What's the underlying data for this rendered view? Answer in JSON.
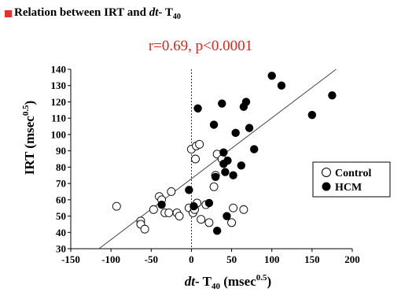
{
  "header": {
    "bullet_color": "#e8312a",
    "prefix": "Relation between IRT and ",
    "italic": "dt",
    "suffix": "- T",
    "sub": "40"
  },
  "chart_data": {
    "type": "scatter",
    "title": "Relation between IRT and dt- T40",
    "subtitle": "r=0.69, p<0.0001",
    "xlabel": "dt- T40 (msec0.5)",
    "ylabel": "IRT (msec0.5)",
    "xlim": [
      -150,
      200
    ],
    "ylim": [
      30,
      140
    ],
    "x_ticks": [
      -150,
      -100,
      -50,
      0,
      50,
      100,
      150,
      200
    ],
    "y_ticks": [
      30,
      40,
      50,
      60,
      70,
      80,
      90,
      100,
      110,
      120,
      130,
      140
    ],
    "grid": false,
    "legend": "right",
    "vertical_reference_line_x": 0,
    "regression_line": {
      "x1": -115,
      "y1": 30,
      "x2": 180,
      "y2": 140
    },
    "series": [
      {
        "name": "Control",
        "marker": "open-circle",
        "color": "#000000",
        "points": [
          [
            -93,
            56
          ],
          [
            -63,
            47
          ],
          [
            -63,
            45
          ],
          [
            -58,
            42
          ],
          [
            -47,
            54
          ],
          [
            -40,
            62
          ],
          [
            -37,
            60
          ],
          [
            -33,
            52
          ],
          [
            -28,
            52
          ],
          [
            -25,
            65
          ],
          [
            -18,
            52
          ],
          [
            -15,
            50
          ],
          [
            -3,
            55
          ],
          [
            0,
            91
          ],
          [
            2,
            52
          ],
          [
            4,
            54
          ],
          [
            5,
            85
          ],
          [
            6,
            93
          ],
          [
            7,
            58
          ],
          [
            10,
            94
          ],
          [
            12,
            48
          ],
          [
            18,
            57
          ],
          [
            22,
            46
          ],
          [
            28,
            68
          ],
          [
            30,
            75
          ],
          [
            32,
            88
          ],
          [
            38,
            85
          ],
          [
            50,
            46
          ],
          [
            52,
            55
          ],
          [
            65,
            54
          ]
        ]
      },
      {
        "name": "HCM",
        "marker": "filled-circle",
        "color": "#000000",
        "points": [
          [
            -37,
            57
          ],
          [
            -3,
            66
          ],
          [
            3,
            56
          ],
          [
            8,
            116
          ],
          [
            22,
            58
          ],
          [
            28,
            106
          ],
          [
            30,
            74
          ],
          [
            32,
            41
          ],
          [
            38,
            119
          ],
          [
            40,
            89
          ],
          [
            40,
            82
          ],
          [
            42,
            77
          ],
          [
            44,
            50
          ],
          [
            45,
            84
          ],
          [
            52,
            75
          ],
          [
            55,
            101
          ],
          [
            62,
            81
          ],
          [
            65,
            117
          ],
          [
            68,
            120
          ],
          [
            72,
            104
          ],
          [
            78,
            91
          ],
          [
            100,
            136
          ],
          [
            112,
            130
          ],
          [
            150,
            112
          ],
          [
            175,
            124
          ]
        ]
      }
    ]
  }
}
